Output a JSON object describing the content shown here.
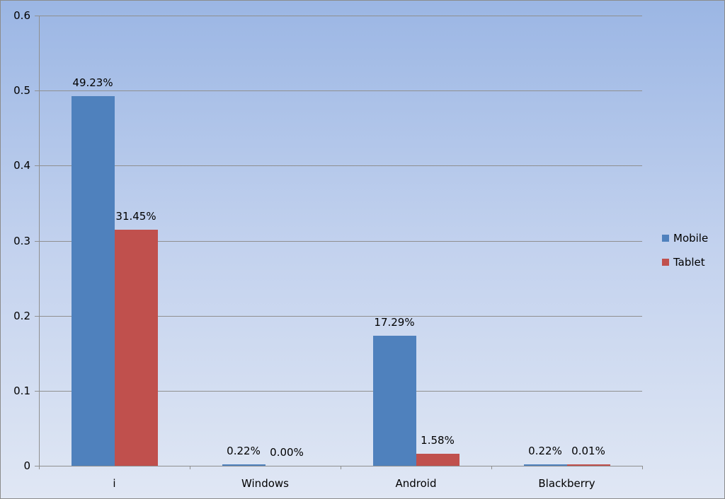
{
  "chart_data": {
    "type": "bar",
    "title": "",
    "xlabel": "",
    "ylabel": "",
    "categories": [
      "i",
      "Windows",
      "Android",
      "Blackberry"
    ],
    "series": [
      {
        "name": "Mobile",
        "color": "#4f81bd",
        "values": [
          0.4923,
          0.0022,
          0.1729,
          0.0022
        ],
        "labels": [
          "49.23%",
          "0.22%",
          "17.29%",
          "0.22%"
        ]
      },
      {
        "name": "Tablet",
        "color": "#c0504d",
        "values": [
          0.3145,
          0.0,
          0.0158,
          0.0001
        ],
        "labels": [
          "31.45%",
          "0.00%",
          "1.58%",
          "0.01%"
        ]
      }
    ],
    "ylim": [
      0,
      0.6
    ],
    "yticks": [
      "0",
      "0.1",
      "0.2",
      "0.3",
      "0.4",
      "0.5",
      "0.6"
    ],
    "grid": true,
    "legend_position": "right"
  }
}
